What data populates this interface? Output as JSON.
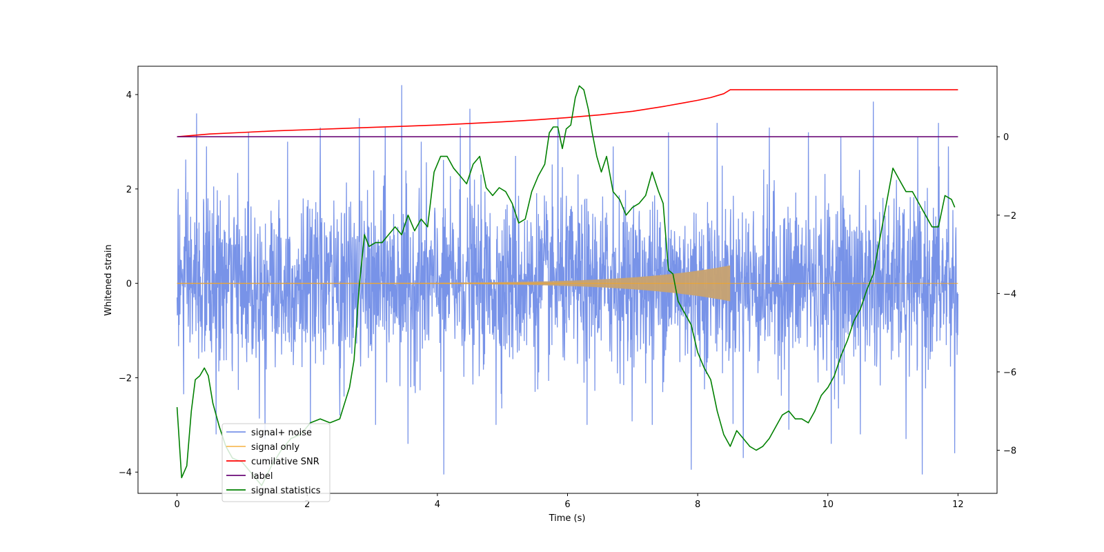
{
  "chart_data": {
    "type": "line",
    "xlabel": "Time (s)",
    "ylabel": "Whitened strain",
    "ylabel_right": "",
    "xlim": [
      -0.6,
      12.6
    ],
    "ylim": [
      -4.45,
      4.6
    ],
    "ylim_right": [
      -9.1,
      1.8
    ],
    "x_ticks": [
      0,
      2,
      4,
      6,
      8,
      10,
      12
    ],
    "y_ticks": [
      -4,
      -2,
      0,
      2,
      4
    ],
    "y_ticks_right": [
      -8,
      -6,
      -4,
      -2,
      0
    ],
    "grid": false,
    "legend_position": "lower-left",
    "series": [
      {
        "name": "signal+ noise",
        "axis": "left",
        "color": "#7893e8",
        "style": "noise band",
        "t_range": [
          0,
          12
        ],
        "typical_range": [
          -1.8,
          1.9
        ],
        "peaks_x": [
          0.02,
          0.1,
          0.3,
          0.45,
          0.6,
          1.1,
          1.35,
          1.7,
          2.05,
          2.2,
          2.5,
          2.8,
          3.05,
          3.2,
          3.45,
          3.55,
          3.75,
          4.1,
          4.35,
          4.5,
          4.9,
          5.2,
          5.5,
          5.85,
          6.3,
          6.7,
          7.3,
          7.55,
          7.9,
          8.3,
          8.7,
          9.1,
          9.4,
          9.7,
          10.05,
          10.2,
          10.5,
          10.7,
          11.2,
          11.45,
          11.7,
          11.85,
          11.95
        ],
        "peaks_y": [
          2.0,
          -2.35,
          3.6,
          2.9,
          -3.2,
          3.2,
          -3.3,
          3.0,
          -3.1,
          3.3,
          -2.8,
          3.5,
          -3.0,
          3.3,
          4.2,
          -3.4,
          3.0,
          -4.05,
          3.3,
          3.7,
          -3.0,
          2.7,
          -2.3,
          3.5,
          -3.0,
          2.9,
          -3.0,
          3.2,
          -3.95,
          3.4,
          -3.7,
          3.3,
          -3.1,
          3.2,
          -3.4,
          3.1,
          -3.2,
          3.85,
          -3.3,
          -4.05,
          3.4,
          2.9,
          -3.6
        ]
      },
      {
        "name": "signal only",
        "axis": "left",
        "color": "#f5a623",
        "style": "chirp",
        "t_start": 0,
        "t_merger": 8.5,
        "t_end": 12,
        "amp_start": 0.01,
        "amp_peak": 0.38
      },
      {
        "name": "cumilative SNR",
        "axis": "right",
        "color": "#ff0000",
        "x": [
          0,
          0.5,
          1,
          1.5,
          2,
          2.5,
          3,
          3.5,
          4,
          4.5,
          5,
          5.5,
          6,
          6.5,
          7,
          7.5,
          7.8,
          8.0,
          8.2,
          8.4,
          8.5,
          9,
          10,
          11,
          12
        ],
        "y": [
          0.0,
          0.07,
          0.11,
          0.15,
          0.18,
          0.21,
          0.24,
          0.27,
          0.3,
          0.34,
          0.38,
          0.43,
          0.49,
          0.56,
          0.65,
          0.78,
          0.87,
          0.93,
          1.0,
          1.1,
          1.2,
          1.2,
          1.2,
          1.2,
          1.2
        ]
      },
      {
        "name": "label",
        "axis": "right",
        "color": "#6a0a77",
        "x": [
          0,
          12
        ],
        "y": [
          0,
          0
        ]
      },
      {
        "name": "signal statistics",
        "axis": "right",
        "color": "#008000",
        "x": [
          0,
          0.07,
          0.15,
          0.22,
          0.28,
          0.35,
          0.42,
          0.48,
          0.55,
          0.65,
          0.75,
          0.85,
          1.0,
          1.15,
          1.3,
          1.45,
          1.6,
          1.75,
          1.9,
          2.05,
          2.2,
          2.35,
          2.5,
          2.65,
          2.72,
          2.8,
          2.88,
          2.95,
          3.05,
          3.15,
          3.25,
          3.35,
          3.45,
          3.55,
          3.65,
          3.75,
          3.85,
          3.95,
          4.05,
          4.15,
          4.25,
          4.35,
          4.45,
          4.55,
          4.65,
          4.75,
          4.85,
          4.95,
          5.05,
          5.15,
          5.25,
          5.35,
          5.45,
          5.55,
          5.65,
          5.72,
          5.78,
          5.85,
          5.92,
          5.98,
          6.05,
          6.12,
          6.18,
          6.25,
          6.32,
          6.38,
          6.45,
          6.52,
          6.6,
          6.7,
          6.8,
          6.9,
          7.0,
          7.1,
          7.2,
          7.3,
          7.4,
          7.47,
          7.55,
          7.62,
          7.7,
          7.8,
          7.9,
          8.0,
          8.1,
          8.2,
          8.3,
          8.4,
          8.5,
          8.6,
          8.7,
          8.8,
          8.9,
          9.0,
          9.1,
          9.2,
          9.3,
          9.4,
          9.5,
          9.6,
          9.7,
          9.8,
          9.9,
          10.0,
          10.1,
          10.2,
          10.3,
          10.4,
          10.5,
          10.6,
          10.7,
          10.8,
          10.9,
          11.0,
          11.1,
          11.2,
          11.3,
          11.4,
          11.5,
          11.6,
          11.7,
          11.8,
          11.9,
          11.95
        ],
        "y": [
          -6.9,
          -8.7,
          -8.4,
          -7.0,
          -6.2,
          -6.1,
          -5.9,
          -6.1,
          -6.8,
          -7.4,
          -7.9,
          -8.2,
          -8.3,
          -8.6,
          -8.9,
          -8.4,
          -8.0,
          -7.7,
          -7.6,
          -7.3,
          -7.2,
          -7.3,
          -7.2,
          -6.4,
          -5.7,
          -3.8,
          -2.5,
          -2.8,
          -2.7,
          -2.7,
          -2.5,
          -2.3,
          -2.5,
          -2.0,
          -2.4,
          -2.1,
          -2.3,
          -0.9,
          -0.5,
          -0.5,
          -0.8,
          -1.0,
          -1.2,
          -0.7,
          -0.5,
          -1.3,
          -1.5,
          -1.3,
          -1.4,
          -1.7,
          -2.2,
          -2.1,
          -1.4,
          -1.0,
          -0.7,
          0.1,
          0.25,
          0.25,
          -0.3,
          0.2,
          0.3,
          1.0,
          1.3,
          1.2,
          0.7,
          0.1,
          -0.5,
          -0.9,
          -0.5,
          -1.4,
          -1.6,
          -2.0,
          -1.8,
          -1.7,
          -1.5,
          -0.9,
          -1.4,
          -1.7,
          -3.4,
          -3.5,
          -4.2,
          -4.5,
          -4.8,
          -5.5,
          -5.9,
          -6.2,
          -7.0,
          -7.6,
          -7.9,
          -7.5,
          -7.7,
          -7.9,
          -8.0,
          -7.9,
          -7.7,
          -7.4,
          -7.1,
          -7.0,
          -7.2,
          -7.2,
          -7.3,
          -7.0,
          -6.6,
          -6.4,
          -6.1,
          -5.6,
          -5.2,
          -4.7,
          -4.4,
          -3.9,
          -3.5,
          -2.6,
          -1.7,
          -0.8,
          -1.1,
          -1.4,
          -1.4,
          -1.7,
          -2.0,
          -2.3,
          -2.3,
          -1.5,
          -1.6,
          -1.8
        ]
      }
    ]
  }
}
